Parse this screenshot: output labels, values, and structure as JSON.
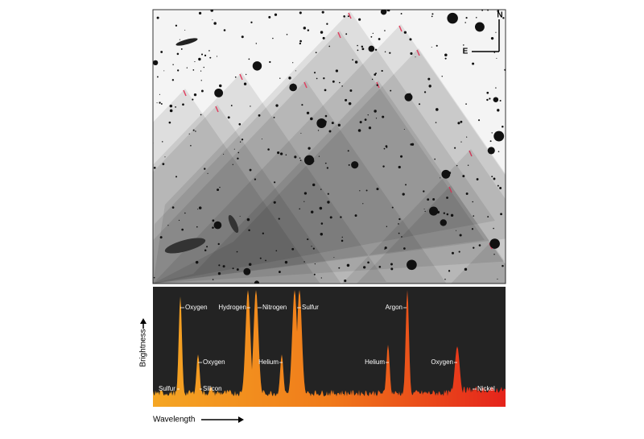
{
  "compass": {
    "north": "N",
    "east": "E"
  },
  "spectrum": {
    "y_label": "Brightness",
    "x_label": "Wavelength",
    "lines": [
      "Sulfur",
      "Oxygen",
      "Oxygen",
      "Silicon",
      "Hydrogen",
      "Nitrogen",
      "Helium",
      "Sulfur",
      "Argon",
      "Helium",
      "Oxygen",
      "Nickel"
    ]
  }
}
